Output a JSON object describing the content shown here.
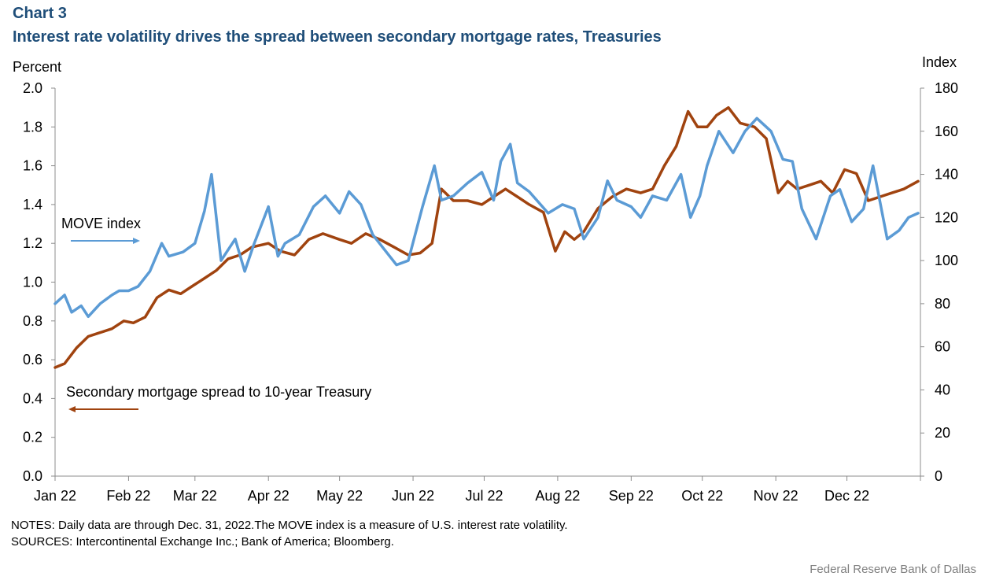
{
  "header": {
    "chart_label": "Chart 3",
    "title": "Interest rate volatility drives the spread between secondary mortgage rates, Treasuries"
  },
  "footer": {
    "notes": "NOTES: Daily data are through Dec. 31, 2022.The MOVE index is a measure of U.S. interest rate volatility.",
    "sources": "SOURCES: Intercontinental Exchange Inc.; Bank of America; Bloomberg.",
    "credit": "Federal Reserve Bank of Dallas"
  },
  "colors": {
    "move": "#5b9bd5",
    "spread": "#a0430f",
    "title": "#1f4e79"
  },
  "chart_data": {
    "type": "line",
    "x_type": "date",
    "x_range": [
      "2022-01-01",
      "2022-12-31"
    ],
    "left_axis": {
      "label": "Percent",
      "ylim": [
        0,
        2.0
      ],
      "ticks": [
        "0.0",
        "0.2",
        "0.4",
        "0.6",
        "0.8",
        "1.0",
        "1.2",
        "1.4",
        "1.6",
        "1.8",
        "2.0"
      ]
    },
    "right_axis": {
      "label": "Index",
      "ylim": [
        0,
        180
      ],
      "ticks": [
        "0",
        "20",
        "40",
        "60",
        "80",
        "100",
        "120",
        "140",
        "160",
        "180"
      ]
    },
    "x_ticks": [
      "Jan 22",
      "Feb 22",
      "Mar 22",
      "Apr 22",
      "May 22",
      "Jun 22",
      "Jul 22",
      "Aug 22",
      "Sep 22",
      "Oct 22",
      "Nov 22",
      "Dec 22"
    ],
    "grid": false,
    "annotations": [
      {
        "text": "MOVE index",
        "arrow": "right"
      },
      {
        "text": "Secondary mortgage spread to 10-year Treasury",
        "arrow": "left"
      }
    ],
    "series": [
      {
        "name": "MOVE index",
        "axis": "right",
        "x": [
          "2022-01-01",
          "2022-01-05",
          "2022-01-08",
          "2022-01-12",
          "2022-01-15",
          "2022-01-20",
          "2022-01-25",
          "2022-01-28",
          "2022-02-01",
          "2022-02-05",
          "2022-02-10",
          "2022-02-15",
          "2022-02-18",
          "2022-02-24",
          "2022-03-01",
          "2022-03-05",
          "2022-03-08",
          "2022-03-12",
          "2022-03-18",
          "2022-03-22",
          "2022-03-26",
          "2022-04-01",
          "2022-04-05",
          "2022-04-08",
          "2022-04-14",
          "2022-04-20",
          "2022-04-25",
          "2022-05-01",
          "2022-05-05",
          "2022-05-10",
          "2022-05-15",
          "2022-05-20",
          "2022-05-25",
          "2022-05-30",
          "2022-06-05",
          "2022-06-10",
          "2022-06-13",
          "2022-06-18",
          "2022-06-24",
          "2022-06-30",
          "2022-07-05",
          "2022-07-08",
          "2022-07-12",
          "2022-07-15",
          "2022-07-20",
          "2022-07-28",
          "2022-08-03",
          "2022-08-08",
          "2022-08-12",
          "2022-08-18",
          "2022-08-22",
          "2022-08-26",
          "2022-09-01",
          "2022-09-05",
          "2022-09-10",
          "2022-09-16",
          "2022-09-22",
          "2022-09-26",
          "2022-09-30",
          "2022-10-03",
          "2022-10-08",
          "2022-10-14",
          "2022-10-19",
          "2022-10-24",
          "2022-10-30",
          "2022-11-04",
          "2022-11-08",
          "2022-11-12",
          "2022-11-18",
          "2022-11-24",
          "2022-11-28",
          "2022-12-03",
          "2022-12-08",
          "2022-12-12",
          "2022-12-18",
          "2022-12-23",
          "2022-12-27",
          "2022-12-31"
        ],
        "values": [
          80,
          84,
          76,
          79,
          74,
          80,
          84,
          86,
          86,
          88,
          95,
          108,
          102,
          104,
          108,
          123,
          140,
          100,
          110,
          95,
          108,
          125,
          102,
          108,
          112,
          125,
          130,
          122,
          132,
          126,
          112,
          105,
          98,
          100,
          125,
          144,
          128,
          130,
          136,
          141,
          128,
          146,
          154,
          136,
          132,
          122,
          126,
          124,
          110,
          120,
          137,
          128,
          125,
          120,
          130,
          128,
          140,
          120,
          130,
          144,
          160,
          150,
          160,
          166,
          160,
          147,
          146,
          124,
          110,
          130,
          133,
          118,
          124,
          144,
          110,
          114,
          120,
          122
        ],
        "color": "#5b9bd5"
      },
      {
        "name": "Secondary mortgage spread to 10-year Treasury",
        "axis": "left",
        "x": [
          "2022-01-01",
          "2022-01-05",
          "2022-01-10",
          "2022-01-15",
          "2022-01-20",
          "2022-01-25",
          "2022-01-30",
          "2022-02-03",
          "2022-02-08",
          "2022-02-13",
          "2022-02-18",
          "2022-02-23",
          "2022-02-28",
          "2022-03-05",
          "2022-03-10",
          "2022-03-15",
          "2022-03-20",
          "2022-03-25",
          "2022-04-01",
          "2022-04-06",
          "2022-04-12",
          "2022-04-18",
          "2022-04-24",
          "2022-05-01",
          "2022-05-06",
          "2022-05-12",
          "2022-05-18",
          "2022-05-24",
          "2022-05-30",
          "2022-06-04",
          "2022-06-09",
          "2022-06-13",
          "2022-06-18",
          "2022-06-24",
          "2022-06-30",
          "2022-07-05",
          "2022-07-10",
          "2022-07-15",
          "2022-07-20",
          "2022-07-26",
          "2022-07-31",
          "2022-08-04",
          "2022-08-08",
          "2022-08-12",
          "2022-08-18",
          "2022-08-24",
          "2022-08-30",
          "2022-09-05",
          "2022-09-10",
          "2022-09-15",
          "2022-09-20",
          "2022-09-25",
          "2022-09-29",
          "2022-10-03",
          "2022-10-07",
          "2022-10-12",
          "2022-10-17",
          "2022-10-23",
          "2022-10-28",
          "2022-11-02",
          "2022-11-06",
          "2022-11-10",
          "2022-11-15",
          "2022-11-20",
          "2022-11-25",
          "2022-11-30",
          "2022-12-05",
          "2022-12-10",
          "2022-12-15",
          "2022-12-20",
          "2022-12-25",
          "2022-12-31"
        ],
        "values": [
          0.56,
          0.58,
          0.66,
          0.72,
          0.74,
          0.76,
          0.8,
          0.79,
          0.82,
          0.92,
          0.96,
          0.94,
          0.98,
          1.02,
          1.06,
          1.12,
          1.14,
          1.18,
          1.2,
          1.16,
          1.14,
          1.22,
          1.25,
          1.22,
          1.2,
          1.25,
          1.22,
          1.18,
          1.14,
          1.15,
          1.2,
          1.48,
          1.42,
          1.42,
          1.4,
          1.44,
          1.48,
          1.44,
          1.4,
          1.36,
          1.16,
          1.26,
          1.22,
          1.26,
          1.38,
          1.44,
          1.48,
          1.46,
          1.48,
          1.6,
          1.7,
          1.88,
          1.8,
          1.8,
          1.86,
          1.9,
          1.82,
          1.8,
          1.74,
          1.46,
          1.52,
          1.48,
          1.5,
          1.52,
          1.46,
          1.58,
          1.56,
          1.42,
          1.44,
          1.46,
          1.48,
          1.52
        ],
        "color": "#a0430f"
      }
    ]
  }
}
